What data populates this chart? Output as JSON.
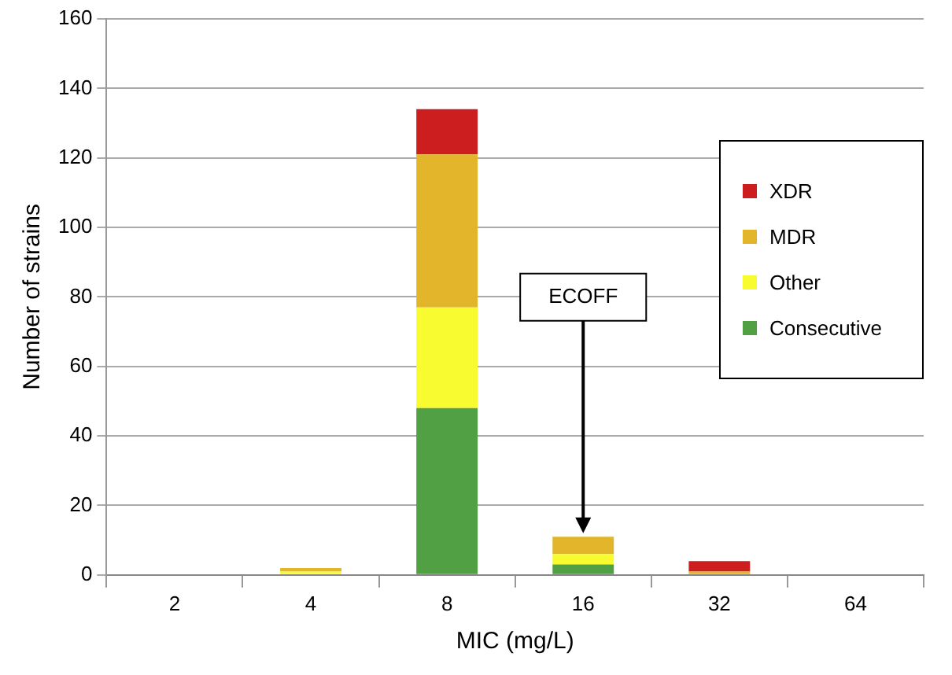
{
  "chart_data": {
    "type": "bar",
    "stacked": true,
    "xlabel": "MIC (mg/L)",
    "ylabel": "Number of strains",
    "categories": [
      "2",
      "4",
      "8",
      "16",
      "32",
      "64"
    ],
    "series": [
      {
        "name": "Consecutive",
        "color": "#52a044",
        "values": [
          0,
          0,
          48,
          3,
          0,
          0
        ]
      },
      {
        "name": "Other",
        "color": "#f8fb2f",
        "values": [
          0,
          1,
          29,
          3,
          0,
          0
        ]
      },
      {
        "name": "MDR",
        "color": "#e2b52a",
        "values": [
          0,
          1,
          44,
          5,
          1,
          0
        ]
      },
      {
        "name": "XDR",
        "color": "#cc1e1e",
        "values": [
          0,
          0,
          13,
          0,
          3,
          0
        ]
      }
    ],
    "ylim": [
      0,
      160
    ],
    "yticks": [
      0,
      20,
      40,
      60,
      80,
      100,
      120,
      140,
      160
    ],
    "grid": "y",
    "legend": "right",
    "annotations": [
      {
        "text": "ECOFF",
        "x": "16",
        "y": 12
      }
    ]
  }
}
